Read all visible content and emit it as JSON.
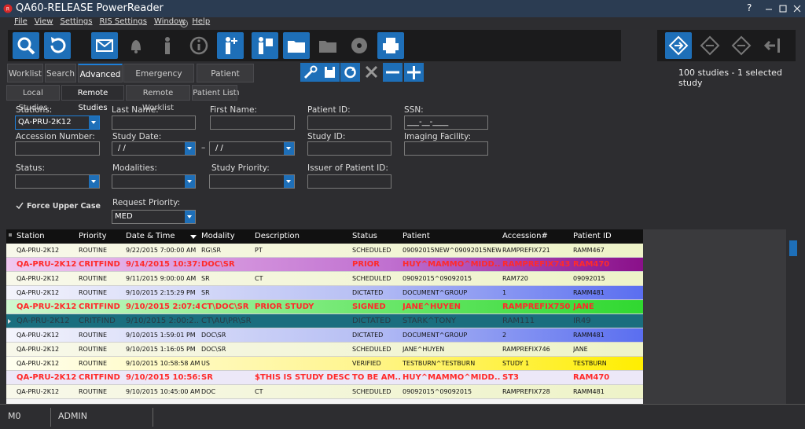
{
  "window": {
    "title": "QA60-RELEASE PowerReader",
    "help": "?"
  },
  "menu": [
    "File",
    "View",
    "Settings",
    "RIS Settings",
    "Window",
    "Help"
  ],
  "tabs": [
    "Worklist",
    "Search",
    "Advanced",
    "Emergency Access",
    "Patient Search"
  ],
  "subtabs": [
    "Local Studies",
    "Remote Studies",
    "Remote Worklist",
    "Patient List"
  ],
  "summary": "100 studies - 1 selected study",
  "form": {
    "stations": {
      "label": "Stations:",
      "value": "QA-PRU-2K12"
    },
    "last_name": {
      "label": "Last Name:"
    },
    "first_name": {
      "label": "First Name:"
    },
    "patient_id": {
      "label": "Patient ID:"
    },
    "ssn": {
      "label": "SSN:",
      "value": "___-__-____"
    },
    "accession": {
      "label": "Accession Number:"
    },
    "study_date": {
      "label": "Study Date:",
      "from": "/ /",
      "separator": "–",
      "to": "/ /"
    },
    "study_id": {
      "label": "Study ID:"
    },
    "facility": {
      "label": "Imaging Facility:"
    },
    "status": {
      "label": "Status:"
    },
    "modalities": {
      "label": "Modalities:"
    },
    "study_priority": {
      "label": "Study Priority:"
    },
    "issuer": {
      "label": "Issuer of Patient ID:"
    },
    "force_upper": {
      "label": "Force Upper Case"
    },
    "request_priority": {
      "label": "Request Priority:",
      "value": "MED"
    }
  },
  "table": {
    "columns": [
      "Station",
      "Priority",
      "Date & Time",
      "Modality",
      "Description",
      "Status",
      "Patient",
      "Accession#",
      "Patient ID"
    ],
    "rows": [
      [
        "QA-PRU-2K12",
        "ROUTINE",
        "9/22/2015 7:00:00 AM",
        "RG\\SR",
        "PT",
        "SCHEDULED",
        "09092015NEW^09092015NEW",
        "RAMPREFIX721",
        "RAMM467"
      ],
      [
        "QA-PRU-2K12",
        "CRITFIND",
        "9/14/2015 10:37:...",
        "DOC\\SR",
        null,
        "PRIOR",
        "HUY^MAMMO^MIDD...",
        "RAMPREFIX743",
        "RAM470"
      ],
      [
        "QA-PRU-2K12",
        "ROUTINE",
        "9/11/2015 9:00:00 AM",
        "SR",
        "CT",
        "SCHEDULED",
        "09092015^09092015",
        "RAM720",
        "09092015"
      ],
      [
        "QA-PRU-2K12",
        "ROUTINE",
        "9/10/2015 2:15:29 PM",
        "SR",
        null,
        "DICTATED",
        "DOCUMENT^GROUP",
        "1",
        "RAMM481"
      ],
      [
        "QA-PRU-2K12",
        "CRITFIND",
        "9/10/2015 2:07:4...",
        "CT\\DOC\\SR",
        "PRIOR STUDY",
        "SIGNED",
        "JANE^HUYEN",
        "RAMPREFIX750",
        "JANE"
      ],
      [
        "QA-PRU-2K12",
        "CRITFIND",
        "9/10/2015 2:00:2...",
        "CT\\AU\\PR\\SR",
        null,
        "DICTATED",
        "STARK^TONY",
        "RAM111",
        "IR49"
      ],
      [
        "QA-PRU-2K12",
        "ROUTINE",
        "9/10/2015 1:59:01 PM",
        "DOC\\SR",
        null,
        "DICTATED",
        "DOCUMENT^GROUP",
        "2",
        "RAMM481"
      ],
      [
        "QA-PRU-2K12",
        "ROUTINE",
        "9/10/2015 1:16:05 PM",
        "DOC\\SR",
        null,
        "SCHEDULED",
        "JANE^HUYEN",
        "RAMPREFIX746",
        "JANE"
      ],
      [
        "QA-PRU-2K12",
        "ROUTINE",
        "9/10/2015 10:58:58 AM",
        "US",
        null,
        "VERIFIED",
        "TESTBURN^TESTBURN",
        "STUDY 1",
        "TESTBURN"
      ],
      [
        "QA-PRU-2K12",
        "CRITFIND",
        "9/10/2015 10:56:...",
        "SR",
        "$THIS IS STUDY DESC...",
        "TO BE AM...",
        "HUY^MAMMO^MIDD...",
        "ST3",
        "RAM470"
      ],
      [
        "QA-PRU-2K12",
        "ROUTINE",
        "9/10/2015 10:45:00 AM",
        "DOC",
        "CT",
        "SCHEDULED",
        "09092015^09092015",
        "RAMPREFIX728",
        "RAMM481"
      ]
    ]
  },
  "statusbar": [
    "M0",
    "ADMIN"
  ]
}
